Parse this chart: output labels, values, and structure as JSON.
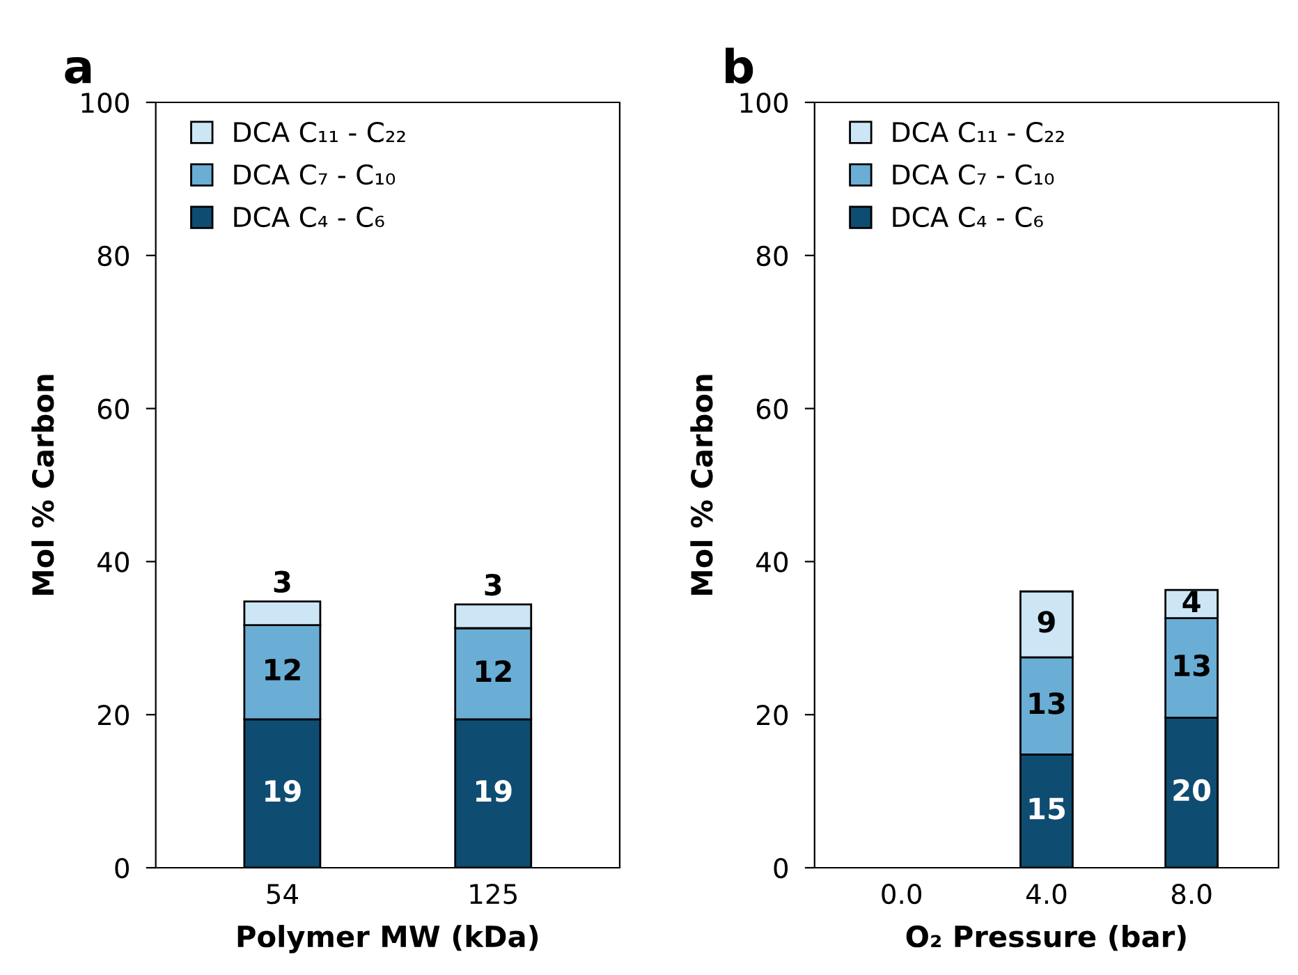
{
  "chart_data": [
    {
      "type": "bar",
      "title": "a",
      "xlabel": "Polymer MW (kDa)",
      "ylabel": "Mol % Carbon",
      "categories": [
        "54",
        "125"
      ],
      "stacked": true,
      "ylim": [
        0,
        100
      ],
      "yticks": [
        0,
        20,
        40,
        60,
        80,
        100
      ],
      "grid": false,
      "legend": "top left",
      "series": [
        {
          "name": "DCA C₄ - C₆",
          "color": "#0f4c71",
          "values": [
            19.4,
            19.4
          ],
          "value_labels": [
            "19",
            "19"
          ]
        },
        {
          "name": "DCA C₇ - C₁₀",
          "color": "#6aaed6",
          "values": [
            12.3,
            11.9
          ],
          "value_labels": [
            "12",
            "12"
          ]
        },
        {
          "name": "DCA C₁₁ - C₂₂",
          "color": "#cde6f5",
          "values": [
            3.1,
            3.1
          ],
          "value_labels": [
            "3",
            "3"
          ]
        }
      ]
    },
    {
      "type": "bar",
      "title": "b",
      "xlabel": "O₂ Pressure (bar)",
      "ylabel": "Mol % Carbon",
      "categories": [
        "0.0",
        "4.0",
        "8.0"
      ],
      "stacked": true,
      "ylim": [
        0,
        100
      ],
      "yticks": [
        0,
        20,
        40,
        60,
        80,
        100
      ],
      "grid": false,
      "legend": "top left",
      "series": [
        {
          "name": "DCA C₄ - C₆",
          "color": "#0f4c71",
          "values": [
            null,
            14.8,
            19.6
          ],
          "value_labels": [
            null,
            "15",
            "20"
          ]
        },
        {
          "name": "DCA C₇ - C₁₀",
          "color": "#6aaed6",
          "values": [
            null,
            12.7,
            13.0
          ],
          "value_labels": [
            null,
            "13",
            "13"
          ]
        },
        {
          "name": "DCA C₁₁ - C₂₂",
          "color": "#cde6f5",
          "values": [
            null,
            8.6,
            3.7
          ],
          "value_labels": [
            null,
            "9",
            "4"
          ]
        }
      ]
    }
  ]
}
